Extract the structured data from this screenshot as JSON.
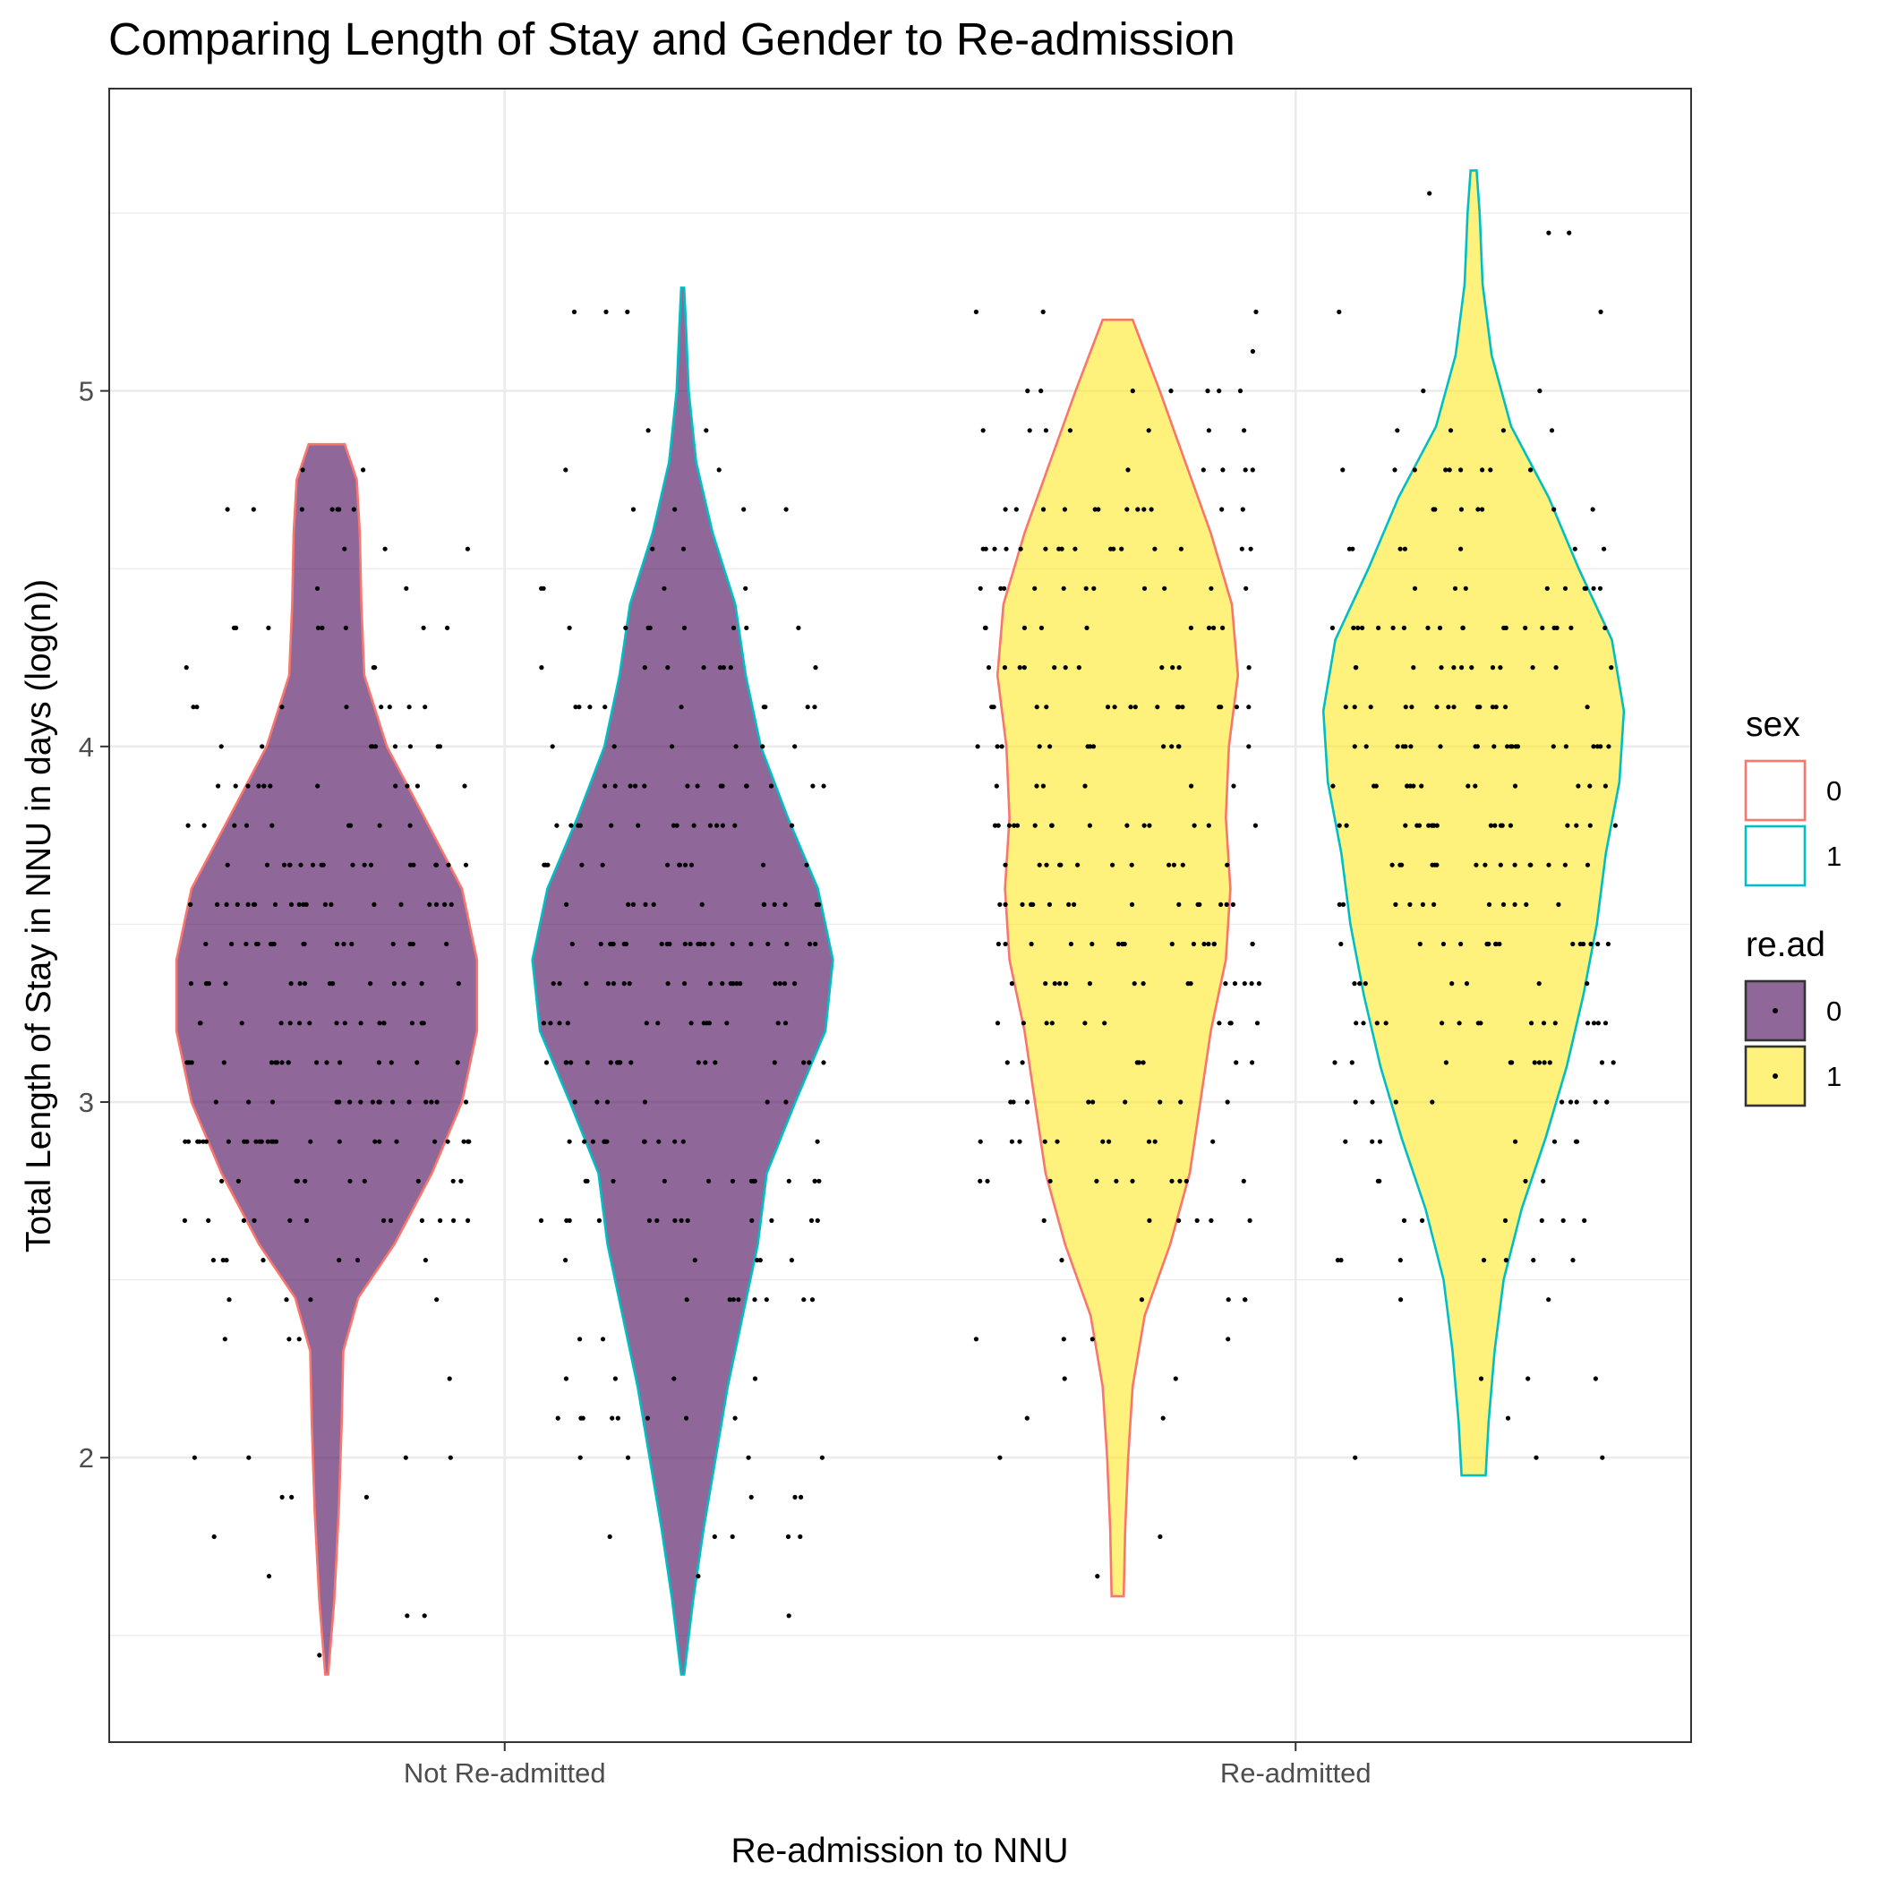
{
  "chart_data": {
    "type": "violin",
    "title": "Comparing Length of Stay and Gender to Re-admission",
    "xlabel": "Re-admission to NNU",
    "ylabel": "Total Length of Stay in NNU in days (log(n))",
    "categories": [
      "Not Re-admitted",
      "Re-admitted"
    ],
    "ylim": [
      1.2,
      5.85
    ],
    "yticks": [
      2,
      3,
      4,
      5
    ],
    "grid": true,
    "legend_position": "right",
    "legends": [
      {
        "title": "sex",
        "kind": "outline",
        "entries": [
          {
            "label": "0",
            "color": "#F8766D"
          },
          {
            "label": "1",
            "color": "#00BFC4"
          }
        ]
      },
      {
        "title": "re.ad",
        "kind": "fill",
        "entries": [
          {
            "label": "0",
            "color": "#440154"
          },
          {
            "label": "1",
            "color": "#FDE725"
          }
        ]
      }
    ],
    "series": [
      {
        "category": "Not Re-admitted",
        "sex": "0",
        "re_ad": "0",
        "fill": "#440154",
        "outline": "#F8766D",
        "y_min": 1.39,
        "y_max": 4.85,
        "density": [
          [
            1.39,
            0.01
          ],
          [
            1.6,
            0.05
          ],
          [
            1.85,
            0.08
          ],
          [
            2.1,
            0.1
          ],
          [
            2.3,
            0.11
          ],
          [
            2.45,
            0.21
          ],
          [
            2.6,
            0.45
          ],
          [
            2.8,
            0.7
          ],
          [
            3.0,
            0.9
          ],
          [
            3.2,
            1.0
          ],
          [
            3.4,
            1.0
          ],
          [
            3.6,
            0.9
          ],
          [
            3.8,
            0.65
          ],
          [
            4.0,
            0.4
          ],
          [
            4.2,
            0.25
          ],
          [
            4.4,
            0.23
          ],
          [
            4.6,
            0.22
          ],
          [
            4.75,
            0.2
          ],
          [
            4.85,
            0.12
          ]
        ]
      },
      {
        "category": "Not Re-admitted",
        "sex": "1",
        "re_ad": "0",
        "fill": "#440154",
        "outline": "#00BFC4",
        "y_min": 1.39,
        "y_max": 5.29,
        "density": [
          [
            1.39,
            0.01
          ],
          [
            1.6,
            0.07
          ],
          [
            1.8,
            0.14
          ],
          [
            2.0,
            0.22
          ],
          [
            2.2,
            0.3
          ],
          [
            2.4,
            0.4
          ],
          [
            2.6,
            0.5
          ],
          [
            2.8,
            0.56
          ],
          [
            3.0,
            0.75
          ],
          [
            3.2,
            0.95
          ],
          [
            3.4,
            1.0
          ],
          [
            3.6,
            0.9
          ],
          [
            3.8,
            0.7
          ],
          [
            4.0,
            0.52
          ],
          [
            4.2,
            0.42
          ],
          [
            4.4,
            0.35
          ],
          [
            4.6,
            0.2
          ],
          [
            4.8,
            0.09
          ],
          [
            5.0,
            0.04
          ],
          [
            5.2,
            0.02
          ],
          [
            5.29,
            0.01
          ]
        ]
      },
      {
        "category": "Re-admitted",
        "sex": "0",
        "re_ad": "1",
        "fill": "#FDE725",
        "outline": "#F8766D",
        "y_min": 1.61,
        "y_max": 5.2,
        "density": [
          [
            1.61,
            0.04
          ],
          [
            1.8,
            0.05
          ],
          [
            2.0,
            0.07
          ],
          [
            2.2,
            0.1
          ],
          [
            2.4,
            0.18
          ],
          [
            2.6,
            0.35
          ],
          [
            2.8,
            0.48
          ],
          [
            3.0,
            0.55
          ],
          [
            3.2,
            0.62
          ],
          [
            3.4,
            0.72
          ],
          [
            3.6,
            0.75
          ],
          [
            3.8,
            0.72
          ],
          [
            4.0,
            0.74
          ],
          [
            4.2,
            0.8
          ],
          [
            4.4,
            0.76
          ],
          [
            4.6,
            0.62
          ],
          [
            4.8,
            0.45
          ],
          [
            5.0,
            0.28
          ],
          [
            5.2,
            0.1
          ]
        ]
      },
      {
        "category": "Re-admitted",
        "sex": "1",
        "re_ad": "1",
        "fill": "#FDE725",
        "outline": "#00BFC4",
        "y_min": 1.95,
        "y_max": 5.62,
        "density": [
          [
            1.95,
            0.08
          ],
          [
            2.1,
            0.1
          ],
          [
            2.3,
            0.14
          ],
          [
            2.5,
            0.2
          ],
          [
            2.7,
            0.32
          ],
          [
            2.9,
            0.48
          ],
          [
            3.1,
            0.62
          ],
          [
            3.3,
            0.73
          ],
          [
            3.5,
            0.82
          ],
          [
            3.7,
            0.88
          ],
          [
            3.9,
            0.97
          ],
          [
            4.1,
            1.0
          ],
          [
            4.3,
            0.92
          ],
          [
            4.5,
            0.7
          ],
          [
            4.7,
            0.5
          ],
          [
            4.9,
            0.25
          ],
          [
            5.1,
            0.12
          ],
          [
            5.3,
            0.06
          ],
          [
            5.5,
            0.04
          ],
          [
            5.62,
            0.02
          ]
        ]
      }
    ]
  }
}
